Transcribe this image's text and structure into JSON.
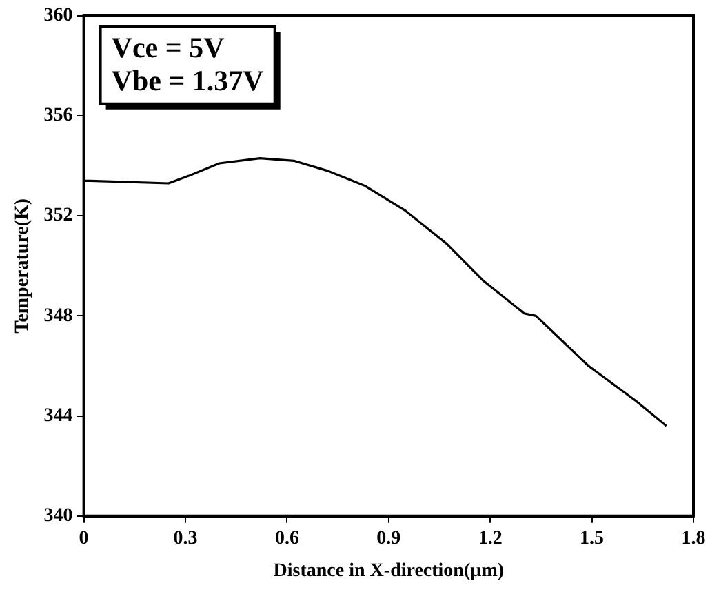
{
  "chart_data": {
    "type": "line",
    "xlabel": "Distance in X-direction(µm)",
    "ylabel": "Temperature(K)",
    "annotations": [
      "Vce = 5V",
      "Vbe = 1.37V"
    ],
    "series": [
      {
        "color": "#000000",
        "x": [
          0,
          0.02,
          0.25,
          0.31,
          0.4,
          0.52,
          0.62,
          0.72,
          0.83,
          0.95,
          1.07,
          1.18,
          1.3,
          1.335,
          1.49,
          1.63,
          1.72
        ],
        "values": [
          353.4,
          353.4,
          353.3,
          353.6,
          354.1,
          354.3,
          354.2,
          353.8,
          353.2,
          352.2,
          350.9,
          349.4,
          348.1,
          348.0,
          346.0,
          344.6,
          343.6
        ]
      }
    ],
    "xlim": [
      0,
      1.8
    ],
    "xticks": [
      0,
      0.3,
      0.6,
      0.9,
      1.2,
      1.5,
      1.8
    ],
    "ylim": [
      340,
      360
    ],
    "yticks": [
      340,
      344,
      348,
      352,
      356,
      360
    ],
    "grid": false,
    "legend": false,
    "marker": "none",
    "line_style": "solid"
  }
}
